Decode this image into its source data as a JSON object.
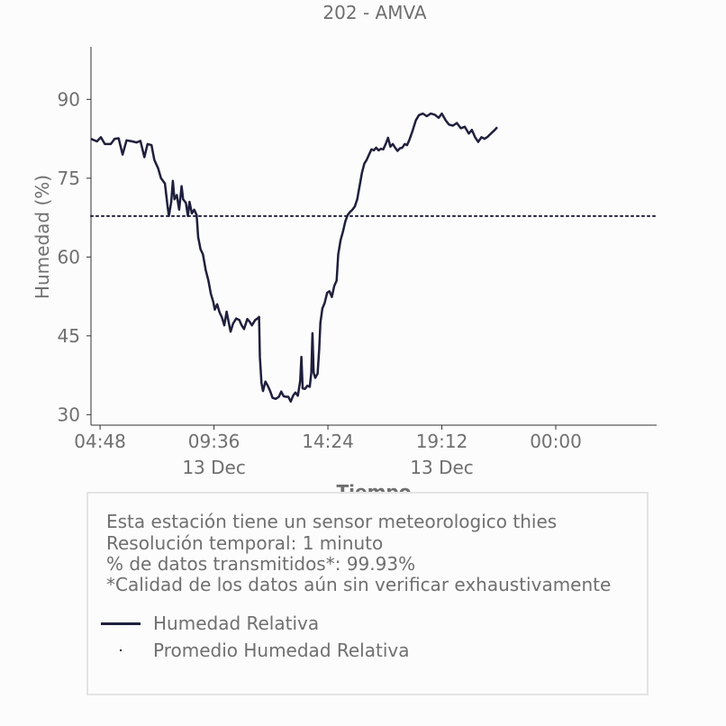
{
  "chart_data": {
    "type": "line",
    "title": "202 - AMVA",
    "xlabel": "Tiempo",
    "ylabel": "Humedad (%)",
    "ylim": [
      28,
      100
    ],
    "y_ticks": [
      30,
      45,
      60,
      75,
      90
    ],
    "x_ticks": [
      {
        "t": 288,
        "label": "04:48",
        "sublabel": ""
      },
      {
        "t": 576,
        "label": "09:36",
        "sublabel": "13 Dec"
      },
      {
        "t": 864,
        "label": "14:24",
        "sublabel": ""
      },
      {
        "t": 1152,
        "label": "19:12",
        "sublabel": "13 Dec"
      },
      {
        "t": 1440,
        "label": "00:00",
        "sublabel": ""
      }
    ],
    "x_unit": "minutes since 00:00 13 Dec",
    "xlim": [
      265,
      1695
    ],
    "grid": false,
    "series": [
      {
        "name": "Humedad Relativa",
        "color": "#1f1f3d",
        "style": "solid",
        "points": [
          [
            265,
            82.5
          ],
          [
            280,
            82
          ],
          [
            290,
            82.8
          ],
          [
            300,
            81.5
          ],
          [
            315,
            81.5
          ],
          [
            325,
            82.5
          ],
          [
            335,
            82.6
          ],
          [
            345,
            79.5
          ],
          [
            355,
            82.2
          ],
          [
            370,
            82
          ],
          [
            380,
            81.8
          ],
          [
            390,
            82.1
          ],
          [
            400,
            79
          ],
          [
            408,
            81.5
          ],
          [
            418,
            81.3
          ],
          [
            425,
            78.5
          ],
          [
            435,
            76.8
          ],
          [
            442,
            75
          ],
          [
            452,
            74
          ],
          [
            458,
            70
          ],
          [
            462,
            67.8
          ],
          [
            468,
            70.5
          ],
          [
            472,
            74.5
          ],
          [
            476,
            71
          ],
          [
            482,
            71.8
          ],
          [
            488,
            69
          ],
          [
            494,
            73.5
          ],
          [
            498,
            71
          ],
          [
            505,
            70.3
          ],
          [
            510,
            67.8
          ],
          [
            514,
            70.5
          ],
          [
            520,
            68.3
          ],
          [
            526,
            69
          ],
          [
            532,
            68
          ],
          [
            536,
            63.8
          ],
          [
            542,
            61.5
          ],
          [
            548,
            60.5
          ],
          [
            555,
            57.5
          ],
          [
            562,
            55.5
          ],
          [
            568,
            53
          ],
          [
            574,
            51.5
          ],
          [
            578,
            50
          ],
          [
            584,
            51
          ],
          [
            590,
            49.5
          ],
          [
            596,
            48.5
          ],
          [
            602,
            47
          ],
          [
            608,
            49.6
          ],
          [
            612,
            48
          ],
          [
            618,
            45.8
          ],
          [
            624,
            47.3
          ],
          [
            632,
            48.3
          ],
          [
            640,
            48
          ],
          [
            646,
            47
          ],
          [
            652,
            46.3
          ],
          [
            660,
            48.2
          ],
          [
            666,
            47.7
          ],
          [
            672,
            47
          ],
          [
            680,
            48
          ],
          [
            686,
            48.3
          ],
          [
            690,
            48.6
          ],
          [
            692,
            41
          ],
          [
            696,
            36
          ],
          [
            700,
            34.5
          ],
          [
            706,
            36.3
          ],
          [
            712,
            35.5
          ],
          [
            718,
            34.5
          ],
          [
            724,
            33.2
          ],
          [
            732,
            33
          ],
          [
            740,
            33.4
          ],
          [
            746,
            34.4
          ],
          [
            752,
            33.5
          ],
          [
            758,
            33.4
          ],
          [
            764,
            33.4
          ],
          [
            770,
            32.5
          ],
          [
            776,
            33.6
          ],
          [
            782,
            34.2
          ],
          [
            788,
            33.6
          ],
          [
            794,
            36.5
          ],
          [
            797,
            41
          ],
          [
            800,
            35
          ],
          [
            806,
            34.9
          ],
          [
            812,
            35.5
          ],
          [
            818,
            35.3
          ],
          [
            822,
            38
          ],
          [
            825,
            45.5
          ],
          [
            828,
            38
          ],
          [
            832,
            37
          ],
          [
            838,
            37.8
          ],
          [
            842,
            42.5
          ],
          [
            845,
            47.5
          ],
          [
            850,
            50.2
          ],
          [
            856,
            51.3
          ],
          [
            862,
            53.2
          ],
          [
            868,
            53.5
          ],
          [
            874,
            52.4
          ],
          [
            880,
            54.5
          ],
          [
            886,
            55.5
          ],
          [
            890,
            60.5
          ],
          [
            896,
            63.2
          ],
          [
            902,
            64.8
          ],
          [
            908,
            66.8
          ],
          [
            914,
            68
          ],
          [
            920,
            68.6
          ],
          [
            926,
            69
          ],
          [
            932,
            69.6
          ],
          [
            938,
            71
          ],
          [
            944,
            73.5
          ],
          [
            950,
            76
          ],
          [
            956,
            77.8
          ],
          [
            962,
            78.5
          ],
          [
            968,
            79.5
          ],
          [
            974,
            80.5
          ],
          [
            980,
            80.3
          ],
          [
            986,
            80.8
          ],
          [
            992,
            80.3
          ],
          [
            998,
            80.6
          ],
          [
            1004,
            80.5
          ],
          [
            1010,
            81.5
          ],
          [
            1016,
            82.7
          ],
          [
            1022,
            81
          ],
          [
            1028,
            81.5
          ],
          [
            1034,
            80.8
          ],
          [
            1040,
            80.2
          ],
          [
            1046,
            80.7
          ],
          [
            1052,
            80.8
          ],
          [
            1058,
            81.5
          ],
          [
            1064,
            81.3
          ],
          [
            1070,
            82.3
          ],
          [
            1078,
            84
          ],
          [
            1086,
            86
          ],
          [
            1094,
            87
          ],
          [
            1104,
            87.3
          ],
          [
            1114,
            86.8
          ],
          [
            1124,
            87.3
          ],
          [
            1134,
            87.1
          ],
          [
            1144,
            86.5
          ],
          [
            1152,
            87.3
          ],
          [
            1162,
            86
          ],
          [
            1170,
            85.2
          ],
          [
            1180,
            85
          ],
          [
            1190,
            85.5
          ],
          [
            1200,
            84.5
          ],
          [
            1210,
            84.8
          ],
          [
            1220,
            83.5
          ],
          [
            1228,
            84.2
          ],
          [
            1236,
            82.8
          ],
          [
            1244,
            81.9
          ],
          [
            1252,
            82.8
          ],
          [
            1260,
            82.5
          ],
          [
            1268,
            82.9
          ],
          [
            1276,
            83.5
          ],
          [
            1286,
            84.2
          ],
          [
            1292,
            84.7
          ]
        ]
      },
      {
        "name": "Promedio Humedad Relativa",
        "color": "#1f1f3d",
        "style": "dotted",
        "value": 67.8
      }
    ]
  },
  "info": {
    "lines": [
      "Esta estación tiene un sensor meteorologico thies",
      "Resolución temporal: 1 minuto",
      "% de datos transmitidos*: 99.93%",
      "*Calidad de los datos aún sin verificar exhaustivamente"
    ]
  },
  "legend": {
    "items": [
      {
        "label": "Humedad Relativa",
        "marker": "line"
      },
      {
        "label": "Promedio Humedad Relativa",
        "marker": "dot"
      }
    ]
  }
}
